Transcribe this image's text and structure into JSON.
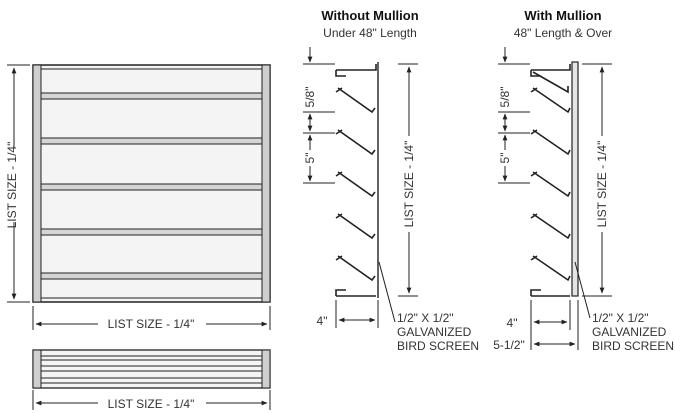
{
  "front_view": {
    "width_label": "LIST SIZE - 1/4\"",
    "height_label": "LIST SIZE - 1/4\""
  },
  "bottom_view": {
    "width_label": "LIST SIZE - 1/4\""
  },
  "without_mullion": {
    "title": "Without Mullion",
    "subtitle": "Under 48\" Length",
    "spacing_label": "5/8\"",
    "pitch_label": "5\"",
    "height_label": "LIST SIZE - 1/4\"",
    "depth_label": "4\"",
    "screen_line1": "1/2\" X 1/2\"",
    "screen_line2": "GALVANIZED",
    "screen_line3": "BIRD SCREEN"
  },
  "with_mullion": {
    "title": "With Mullion",
    "subtitle": "48\" Length & Over",
    "spacing_label": "5/8\"",
    "pitch_label": "5\"",
    "height_label": "LIST SIZE - 1/4\"",
    "depth_label": "4\"",
    "overall_depth_label": "5-1/2\"",
    "screen_line1": "1/2\" X 1/2\"",
    "screen_line2": "GALVANIZED",
    "screen_line3": "BIRD SCREEN"
  }
}
